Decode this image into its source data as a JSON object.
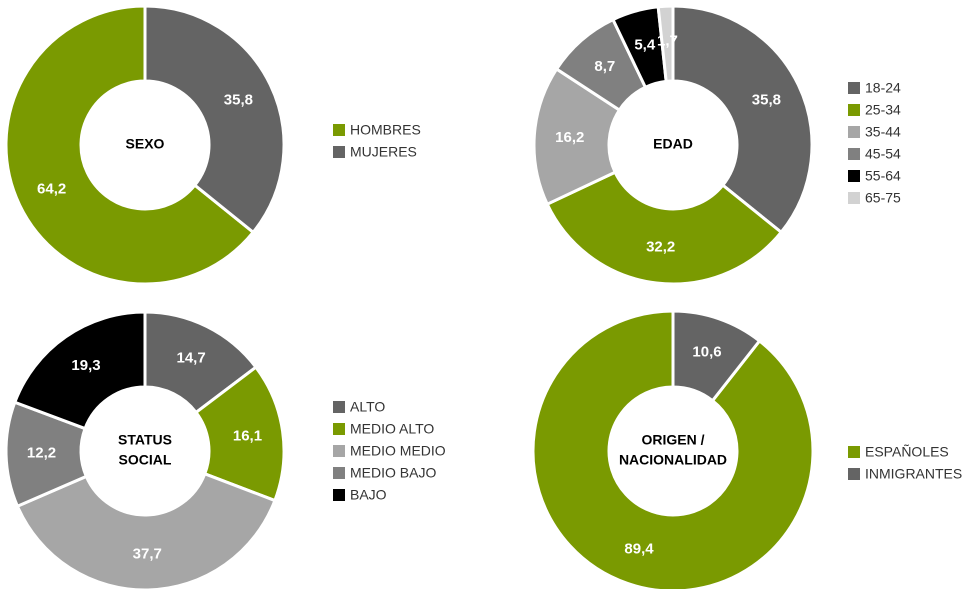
{
  "chart_data": [
    {
      "type": "pie",
      "title": [
        "SEXO"
      ],
      "counterclock": true,
      "categories": [
        "HOMBRES",
        "MUJERES"
      ],
      "values": [
        64.2,
        35.8
      ],
      "value_labels": [
        "64,2",
        "35,8"
      ],
      "colors": [
        "#7a9a01",
        "#646464"
      ]
    },
    {
      "type": "pie",
      "title": [
        "EDAD"
      ],
      "counterclock": false,
      "categories": [
        "18-24",
        "25-34",
        "35-44",
        "45-54",
        "55-64",
        "65-75"
      ],
      "values": [
        35.8,
        32.2,
        16.2,
        8.7,
        5.4,
        1.7
      ],
      "value_labels": [
        "35,8",
        "32,2",
        "16,2",
        "8,7",
        "5,4",
        "1,7"
      ],
      "colors": [
        "#646464",
        "#7a9a01",
        "#a6a6a6",
        "#808080",
        "#000000",
        "#d2d2d2"
      ]
    },
    {
      "type": "pie",
      "title": [
        "STATUS",
        "SOCIAL"
      ],
      "counterclock": false,
      "categories": [
        "ALTO",
        "MEDIO ALTO",
        "MEDIO MEDIO",
        "MEDIO BAJO",
        "BAJO"
      ],
      "values": [
        14.7,
        16.1,
        37.7,
        12.2,
        19.3
      ],
      "value_labels": [
        "14,7",
        "16,1",
        "37,7",
        "12,2",
        "19,3"
      ],
      "colors": [
        "#646464",
        "#7a9a01",
        "#a6a6a6",
        "#808080",
        "#000000"
      ]
    },
    {
      "type": "pie",
      "title": [
        "ORIGEN /",
        "NACIONALIDAD"
      ],
      "counterclock": true,
      "categories": [
        "ESPAÑOLES",
        "INMIGRANTES"
      ],
      "values": [
        89.4,
        10.6
      ],
      "value_labels": [
        "89,4",
        "10,6"
      ],
      "colors": [
        "#7a9a01",
        "#646464"
      ]
    }
  ]
}
